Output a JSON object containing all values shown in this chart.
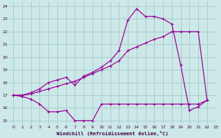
{
  "background_color": "#cce8e8",
  "grid_color": "#aacccc",
  "line_color": "#990099",
  "xlabel": "Windchill (Refroidissement éolien,°C)",
  "xlim": [
    -0.5,
    23.0
  ],
  "ylim": [
    14.7,
    24.3
  ],
  "yticks": [
    15,
    16,
    17,
    18,
    19,
    20,
    21,
    22,
    23,
    24
  ],
  "xticks": [
    0,
    1,
    2,
    3,
    4,
    5,
    6,
    7,
    8,
    9,
    10,
    11,
    12,
    13,
    14,
    15,
    16,
    17,
    18,
    19,
    20,
    21,
    22,
    23
  ],
  "line1_x": [
    0,
    1,
    2,
    3,
    4,
    5,
    6,
    7,
    8,
    9,
    10,
    11,
    12,
    13,
    14,
    15,
    16,
    17,
    18,
    19,
    20,
    21,
    22
  ],
  "line1_y": [
    17.0,
    16.9,
    16.7,
    16.3,
    15.7,
    15.7,
    15.8,
    15.0,
    15.0,
    15.0,
    16.3,
    16.3,
    16.3,
    16.3,
    16.3,
    16.3,
    16.3,
    16.3,
    16.3,
    16.3,
    16.3,
    16.3,
    16.6
  ],
  "line2_x": [
    0,
    1,
    2,
    3,
    4,
    5,
    6,
    7,
    8,
    9,
    10,
    11,
    12,
    13,
    14,
    15,
    16,
    17,
    18,
    19,
    20,
    21,
    22
  ],
  "line2_y": [
    17.0,
    17.0,
    17.1,
    17.3,
    17.5,
    17.7,
    17.9,
    18.1,
    18.4,
    18.7,
    19.0,
    19.3,
    19.7,
    20.5,
    20.8,
    21.1,
    21.4,
    21.6,
    22.0,
    22.0,
    22.0,
    22.0,
    16.6
  ],
  "line3_x": [
    0,
    1,
    2,
    3,
    4,
    5,
    6,
    7,
    8,
    9,
    10,
    11,
    12,
    13,
    14,
    15,
    16,
    17,
    18,
    19,
    20,
    21,
    22
  ],
  "line3_y": [
    17.0,
    17.0,
    17.2,
    17.5,
    18.0,
    18.2,
    18.4,
    17.8,
    18.5,
    18.8,
    19.2,
    19.7,
    20.5,
    22.9,
    23.8,
    23.2,
    23.2,
    23.0,
    22.6,
    19.4,
    15.8,
    16.1,
    16.6
  ]
}
